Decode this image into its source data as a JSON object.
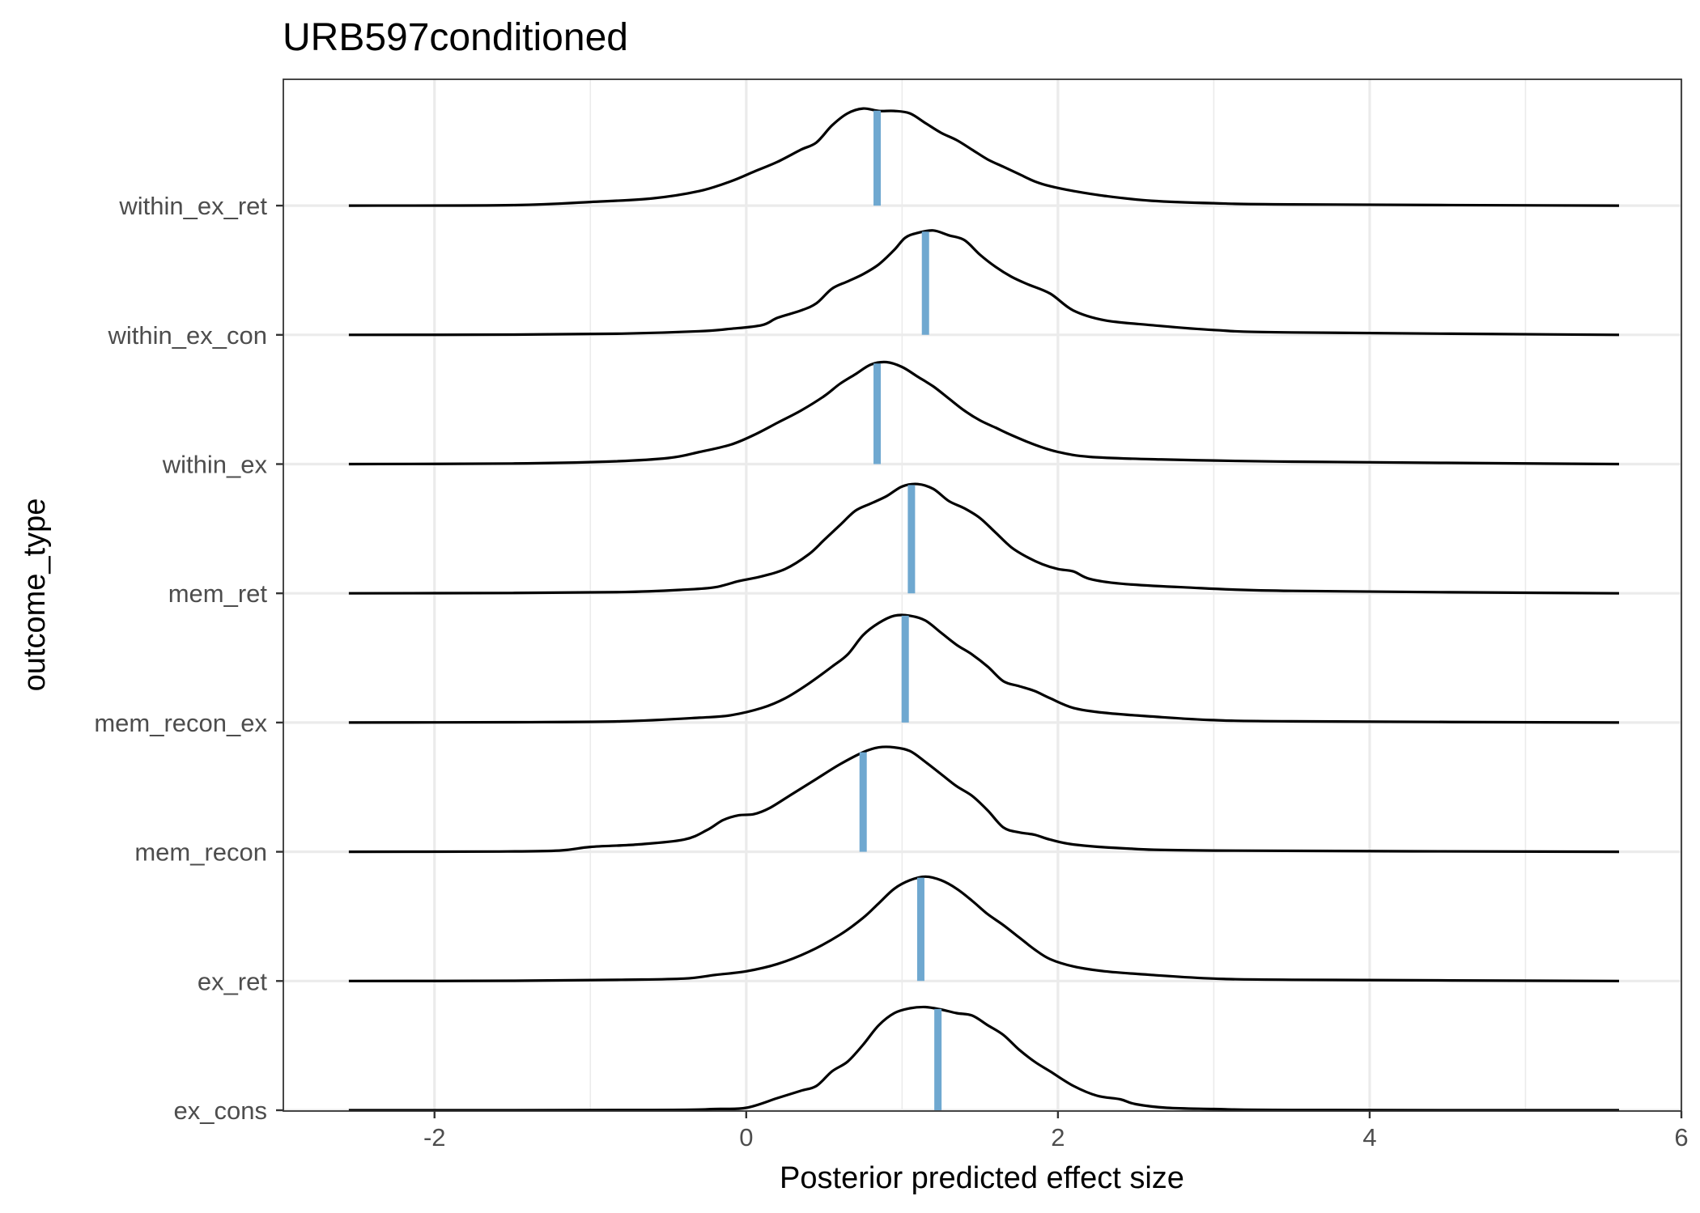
{
  "chart_data": {
    "type": "density-ridges",
    "title": "URB597conditioned",
    "xlabel": "Posterior predicted effect size",
    "ylabel": "outcome_type",
    "xlim": [
      -2.97,
      6.0
    ],
    "x_ticks": [
      -2,
      0,
      2,
      4,
      6
    ],
    "x_tick_labels": [
      "-2",
      "0",
      "2",
      "4",
      "6"
    ],
    "x_range_drawn": [
      -2.55,
      5.6
    ],
    "grid": true,
    "colors": {
      "median": "#6fa8d0",
      "density": "#000000",
      "grid": "#ebebeb"
    },
    "series": [
      {
        "name": "ex_cons",
        "median": 1.23,
        "points": [
          [
            -2.55,
            0
          ],
          [
            -0.6,
            0.002
          ],
          [
            -0.2,
            0.01
          ],
          [
            0,
            0.02
          ],
          [
            0.2,
            0.1
          ],
          [
            0.35,
            0.16
          ],
          [
            0.45,
            0.2
          ],
          [
            0.55,
            0.32
          ],
          [
            0.65,
            0.4
          ],
          [
            0.75,
            0.54
          ],
          [
            0.85,
            0.7
          ],
          [
            0.95,
            0.8
          ],
          [
            1.05,
            0.84
          ],
          [
            1.15,
            0.85
          ],
          [
            1.25,
            0.83
          ],
          [
            1.35,
            0.8
          ],
          [
            1.45,
            0.78
          ],
          [
            1.55,
            0.7
          ],
          [
            1.65,
            0.62
          ],
          [
            1.75,
            0.5
          ],
          [
            1.85,
            0.4
          ],
          [
            1.95,
            0.32
          ],
          [
            2.1,
            0.2
          ],
          [
            2.25,
            0.12
          ],
          [
            2.4,
            0.09
          ],
          [
            2.5,
            0.05
          ],
          [
            2.7,
            0.02
          ],
          [
            3.0,
            0.01
          ],
          [
            3.5,
            0.002
          ],
          [
            5.6,
            0
          ]
        ]
      },
      {
        "name": "ex_ret",
        "median": 1.12,
        "points": [
          [
            -2.55,
            0
          ],
          [
            -1.5,
            0.002
          ],
          [
            -0.8,
            0.01
          ],
          [
            -0.4,
            0.02
          ],
          [
            -0.2,
            0.05
          ],
          [
            0,
            0.08
          ],
          [
            0.2,
            0.14
          ],
          [
            0.4,
            0.24
          ],
          [
            0.6,
            0.38
          ],
          [
            0.75,
            0.52
          ],
          [
            0.85,
            0.64
          ],
          [
            0.95,
            0.76
          ],
          [
            1.05,
            0.83
          ],
          [
            1.15,
            0.86
          ],
          [
            1.25,
            0.83
          ],
          [
            1.35,
            0.76
          ],
          [
            1.45,
            0.66
          ],
          [
            1.55,
            0.55
          ],
          [
            1.65,
            0.46
          ],
          [
            1.75,
            0.36
          ],
          [
            1.85,
            0.26
          ],
          [
            1.95,
            0.18
          ],
          [
            2.1,
            0.12
          ],
          [
            2.3,
            0.08
          ],
          [
            2.6,
            0.05
          ],
          [
            3.0,
            0.02
          ],
          [
            3.5,
            0.01
          ],
          [
            5.6,
            0
          ]
        ]
      },
      {
        "name": "mem_recon",
        "median": 0.75,
        "points": [
          [
            -2.55,
            0
          ],
          [
            -1.6,
            0.002
          ],
          [
            -1.2,
            0.01
          ],
          [
            -1.0,
            0.04
          ],
          [
            -0.7,
            0.06
          ],
          [
            -0.4,
            0.1
          ],
          [
            -0.25,
            0.18
          ],
          [
            -0.15,
            0.26
          ],
          [
            -0.05,
            0.3
          ],
          [
            0.05,
            0.31
          ],
          [
            0.15,
            0.36
          ],
          [
            0.3,
            0.48
          ],
          [
            0.45,
            0.6
          ],
          [
            0.6,
            0.72
          ],
          [
            0.75,
            0.82
          ],
          [
            0.85,
            0.86
          ],
          [
            0.95,
            0.86
          ],
          [
            1.05,
            0.83
          ],
          [
            1.15,
            0.74
          ],
          [
            1.25,
            0.64
          ],
          [
            1.35,
            0.54
          ],
          [
            1.45,
            0.46
          ],
          [
            1.55,
            0.34
          ],
          [
            1.65,
            0.2
          ],
          [
            1.75,
            0.16
          ],
          [
            1.85,
            0.14
          ],
          [
            1.95,
            0.1
          ],
          [
            2.1,
            0.06
          ],
          [
            2.4,
            0.03
          ],
          [
            3.0,
            0.01
          ],
          [
            5.6,
            0
          ]
        ]
      },
      {
        "name": "mem_recon_ex",
        "median": 1.02,
        "points": [
          [
            -2.55,
            0
          ],
          [
            -1.5,
            0.003
          ],
          [
            -0.8,
            0.01
          ],
          [
            -0.3,
            0.04
          ],
          [
            -0.1,
            0.06
          ],
          [
            0.1,
            0.12
          ],
          [
            0.25,
            0.2
          ],
          [
            0.4,
            0.32
          ],
          [
            0.55,
            0.46
          ],
          [
            0.65,
            0.56
          ],
          [
            0.75,
            0.72
          ],
          [
            0.85,
            0.82
          ],
          [
            0.95,
            0.88
          ],
          [
            1.05,
            0.88
          ],
          [
            1.15,
            0.84
          ],
          [
            1.25,
            0.74
          ],
          [
            1.35,
            0.64
          ],
          [
            1.45,
            0.56
          ],
          [
            1.55,
            0.46
          ],
          [
            1.65,
            0.34
          ],
          [
            1.75,
            0.3
          ],
          [
            1.85,
            0.26
          ],
          [
            1.95,
            0.2
          ],
          [
            2.1,
            0.12
          ],
          [
            2.3,
            0.08
          ],
          [
            2.6,
            0.05
          ],
          [
            3.0,
            0.02
          ],
          [
            3.5,
            0.01
          ],
          [
            5.6,
            0
          ]
        ]
      },
      {
        "name": "mem_ret",
        "median": 1.06,
        "points": [
          [
            -2.55,
            0
          ],
          [
            -1.5,
            0.003
          ],
          [
            -0.8,
            0.01
          ],
          [
            -0.4,
            0.03
          ],
          [
            -0.2,
            0.05
          ],
          [
            -0.05,
            0.1
          ],
          [
            0.1,
            0.14
          ],
          [
            0.25,
            0.2
          ],
          [
            0.4,
            0.32
          ],
          [
            0.5,
            0.44
          ],
          [
            0.6,
            0.56
          ],
          [
            0.7,
            0.68
          ],
          [
            0.8,
            0.74
          ],
          [
            0.9,
            0.8
          ],
          [
            1.0,
            0.88
          ],
          [
            1.1,
            0.9
          ],
          [
            1.2,
            0.86
          ],
          [
            1.3,
            0.76
          ],
          [
            1.4,
            0.7
          ],
          [
            1.5,
            0.62
          ],
          [
            1.6,
            0.5
          ],
          [
            1.7,
            0.38
          ],
          [
            1.8,
            0.3
          ],
          [
            1.9,
            0.24
          ],
          [
            2.0,
            0.2
          ],
          [
            2.1,
            0.18
          ],
          [
            2.2,
            0.12
          ],
          [
            2.4,
            0.08
          ],
          [
            2.8,
            0.05
          ],
          [
            3.5,
            0.02
          ],
          [
            5.6,
            0
          ]
        ]
      },
      {
        "name": "within_ex",
        "median": 0.84,
        "points": [
          [
            -2.55,
            0
          ],
          [
            -1.5,
            0.005
          ],
          [
            -0.9,
            0.02
          ],
          [
            -0.5,
            0.05
          ],
          [
            -0.3,
            0.1
          ],
          [
            -0.1,
            0.16
          ],
          [
            0.05,
            0.24
          ],
          [
            0.2,
            0.34
          ],
          [
            0.35,
            0.44
          ],
          [
            0.5,
            0.56
          ],
          [
            0.6,
            0.66
          ],
          [
            0.7,
            0.74
          ],
          [
            0.8,
            0.82
          ],
          [
            0.9,
            0.84
          ],
          [
            1.0,
            0.8
          ],
          [
            1.1,
            0.72
          ],
          [
            1.2,
            0.64
          ],
          [
            1.3,
            0.54
          ],
          [
            1.4,
            0.44
          ],
          [
            1.5,
            0.36
          ],
          [
            1.6,
            0.3
          ],
          [
            1.7,
            0.24
          ],
          [
            1.85,
            0.16
          ],
          [
            2.0,
            0.1
          ],
          [
            2.2,
            0.06
          ],
          [
            2.6,
            0.04
          ],
          [
            3.5,
            0.02
          ],
          [
            5.6,
            0
          ]
        ]
      },
      {
        "name": "within_ex_con",
        "median": 1.15,
        "points": [
          [
            -2.55,
            0
          ],
          [
            -1.5,
            0.002
          ],
          [
            -0.8,
            0.01
          ],
          [
            -0.3,
            0.03
          ],
          [
            -0.1,
            0.05
          ],
          [
            0.1,
            0.08
          ],
          [
            0.2,
            0.14
          ],
          [
            0.35,
            0.2
          ],
          [
            0.45,
            0.26
          ],
          [
            0.55,
            0.38
          ],
          [
            0.65,
            0.44
          ],
          [
            0.75,
            0.5
          ],
          [
            0.85,
            0.58
          ],
          [
            0.95,
            0.7
          ],
          [
            1.02,
            0.8
          ],
          [
            1.1,
            0.84
          ],
          [
            1.2,
            0.86
          ],
          [
            1.3,
            0.82
          ],
          [
            1.4,
            0.78
          ],
          [
            1.5,
            0.66
          ],
          [
            1.6,
            0.56
          ],
          [
            1.7,
            0.48
          ],
          [
            1.8,
            0.42
          ],
          [
            1.95,
            0.34
          ],
          [
            2.1,
            0.2
          ],
          [
            2.3,
            0.12
          ],
          [
            2.6,
            0.08
          ],
          [
            3.0,
            0.04
          ],
          [
            3.5,
            0.02
          ],
          [
            5.6,
            0
          ]
        ]
      },
      {
        "name": "within_ex_ret",
        "median": 0.84,
        "points": [
          [
            -2.55,
            0
          ],
          [
            -1.5,
            0.004
          ],
          [
            -1.0,
            0.03
          ],
          [
            -0.6,
            0.06
          ],
          [
            -0.3,
            0.12
          ],
          [
            -0.1,
            0.2
          ],
          [
            0.05,
            0.28
          ],
          [
            0.2,
            0.36
          ],
          [
            0.35,
            0.46
          ],
          [
            0.45,
            0.52
          ],
          [
            0.55,
            0.66
          ],
          [
            0.65,
            0.76
          ],
          [
            0.75,
            0.8
          ],
          [
            0.85,
            0.78
          ],
          [
            0.95,
            0.78
          ],
          [
            1.05,
            0.76
          ],
          [
            1.15,
            0.68
          ],
          [
            1.25,
            0.6
          ],
          [
            1.35,
            0.54
          ],
          [
            1.45,
            0.46
          ],
          [
            1.55,
            0.38
          ],
          [
            1.65,
            0.32
          ],
          [
            1.75,
            0.26
          ],
          [
            1.85,
            0.2
          ],
          [
            1.95,
            0.16
          ],
          [
            2.1,
            0.12
          ],
          [
            2.3,
            0.08
          ],
          [
            2.6,
            0.04
          ],
          [
            3.0,
            0.02
          ],
          [
            3.5,
            0.01
          ],
          [
            5.6,
            0
          ]
        ]
      }
    ]
  }
}
